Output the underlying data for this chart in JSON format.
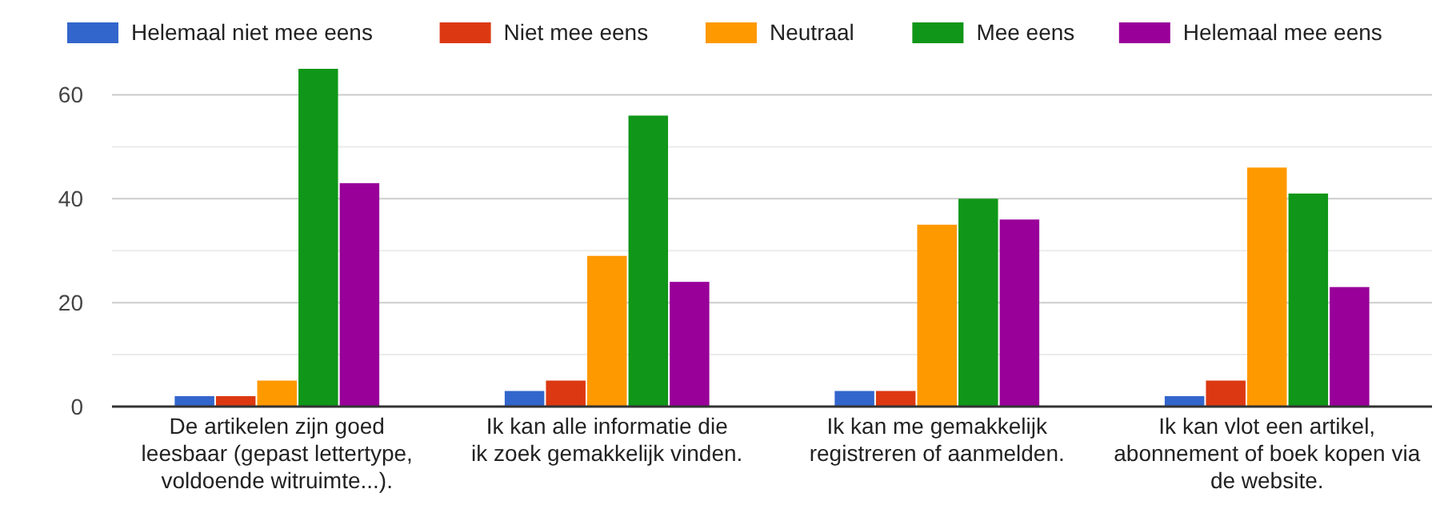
{
  "chart_data": {
    "type": "bar",
    "categories": [
      "De artikelen zijn goed leesbaar (gepast lettertype, voldoende witruimte...).",
      "Ik kan alle informatie die ik zoek gemakkelijk vinden.",
      "Ik kan me gemakkelijk registreren of aanmelden.",
      "Ik kan vlot een artikel, abonnement of boek kopen via de website."
    ],
    "series": [
      {
        "name": "Helemaal niet mee eens",
        "color": "#3366cc",
        "values": [
          2,
          3,
          3,
          2
        ]
      },
      {
        "name": "Niet mee eens",
        "color": "#dc3912",
        "values": [
          2,
          5,
          3,
          5
        ]
      },
      {
        "name": "Neutraal",
        "color": "#ff9900",
        "values": [
          5,
          29,
          35,
          46
        ]
      },
      {
        "name": "Mee eens",
        "color": "#109618",
        "values": [
          65,
          56,
          40,
          41
        ]
      },
      {
        "name": "Helemaal mee eens",
        "color": "#990099",
        "values": [
          43,
          24,
          36,
          23
        ]
      }
    ],
    "ylim": [
      0,
      65
    ],
    "yticks": [
      0,
      {
        "value": 10,
        "label": null
      },
      20,
      {
        "value": 30,
        "label": null
      },
      40,
      {
        "value": 50,
        "label": null
      },
      60
    ],
    "grid": true,
    "legend": "top"
  }
}
